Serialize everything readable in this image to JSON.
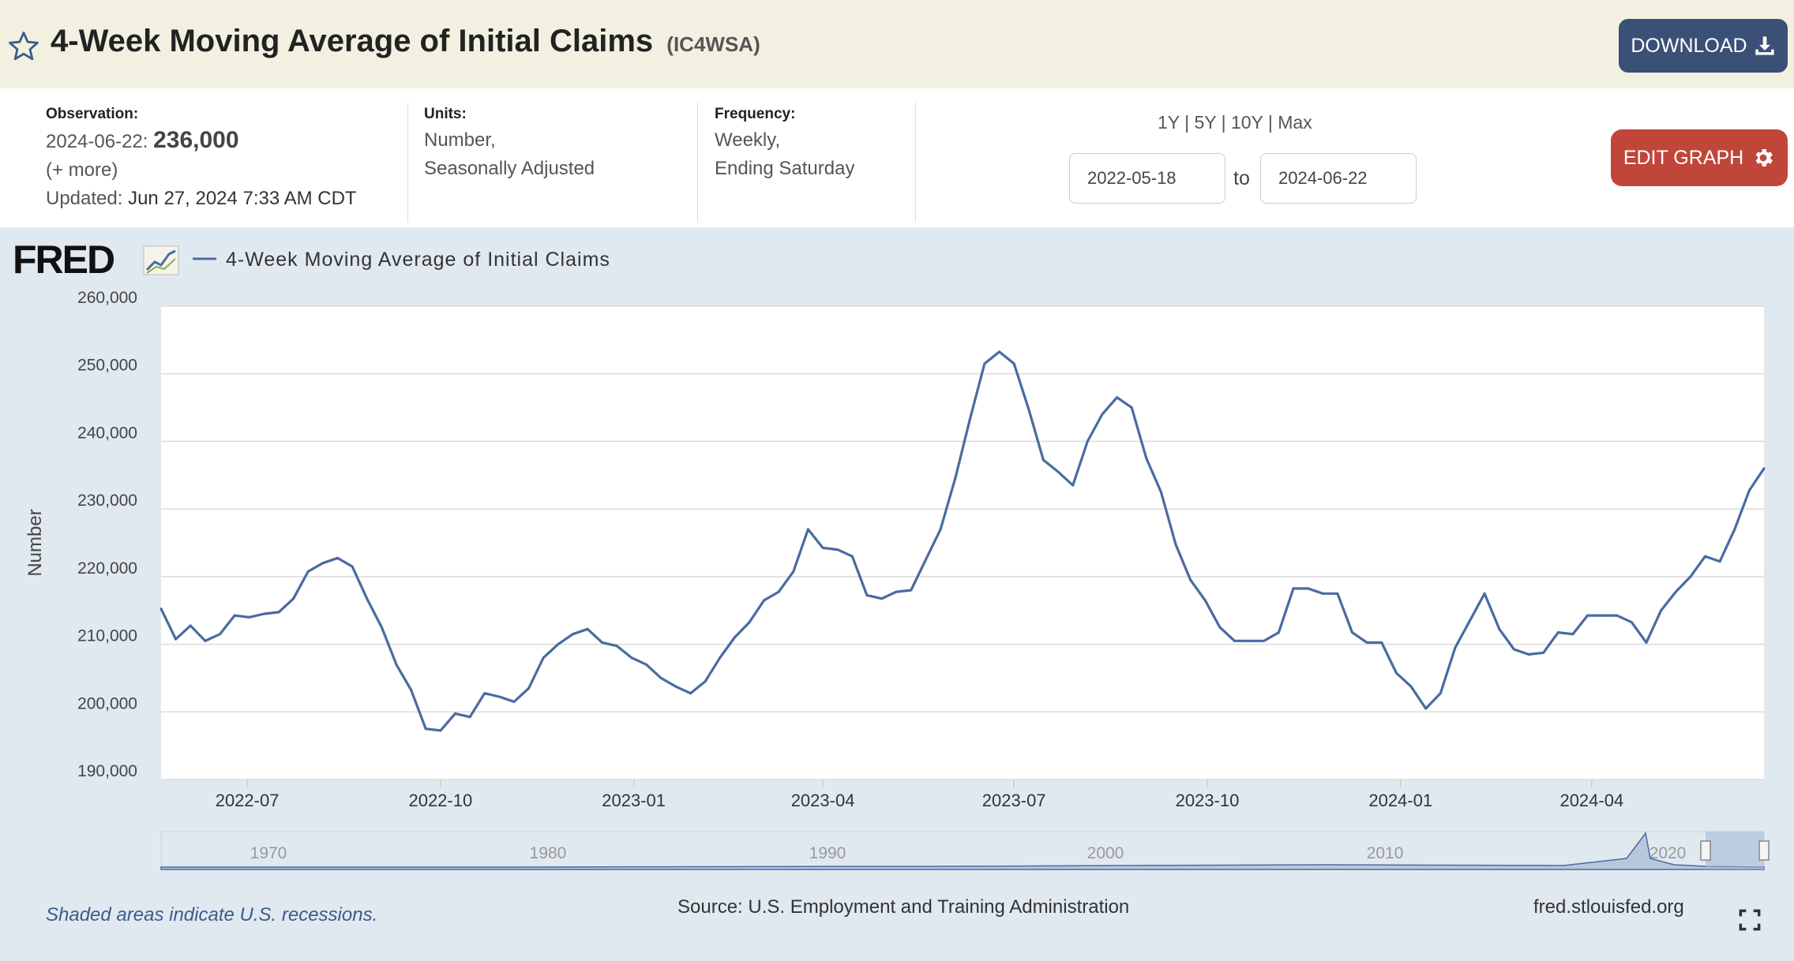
{
  "header": {
    "title": "4-Week Moving Average of Initial Claims",
    "series_id": "(IC4WSA)",
    "download_label": "DOWNLOAD",
    "star_icon": "star-outline-icon",
    "download_icon": "download-icon"
  },
  "meta": {
    "observation_label": "Observation:",
    "observation_date": "2024-06-22:",
    "observation_value": "236,000",
    "more_link": "(+ more)",
    "updated_label": "Updated:",
    "updated_value": "Jun 27, 2024 7:33 AM CDT",
    "units_label": "Units:",
    "units_line1": "Number,",
    "units_line2": "Seasonally Adjusted",
    "frequency_label": "Frequency:",
    "frequency_line1": "Weekly,",
    "frequency_line2": "Ending Saturday",
    "range_links": [
      "1Y",
      "5Y",
      "10Y",
      "Max"
    ],
    "range_sep": "|",
    "start_date": "2022-05-18",
    "to_label": "to",
    "end_date": "2024-06-22",
    "edit_label": "EDIT GRAPH",
    "edit_icon": "gear-icon"
  },
  "colors": {
    "line": "#4a6ba0",
    "header_bg": "#f2f1e1",
    "panel_bg": "#e1e9f0",
    "download_btn": "#3b5077",
    "edit_btn": "#c1463a"
  },
  "chart_data": {
    "type": "line",
    "legend": "4-Week Moving Average of Initial Claims",
    "ylabel": "Number",
    "ylim": [
      190000,
      260000
    ],
    "yticks": [
      190000,
      200000,
      210000,
      220000,
      230000,
      240000,
      250000,
      260000
    ],
    "ytick_labels": [
      "190,000",
      "200,000",
      "210,000",
      "220,000",
      "230,000",
      "240,000",
      "250,000",
      "260,000"
    ],
    "xlim": [
      "2022-05-21",
      "2024-06-22"
    ],
    "xticks": [
      "2022-07-01",
      "2022-10-01",
      "2023-01-01",
      "2023-04-01",
      "2023-07-01",
      "2023-10-01",
      "2024-01-01",
      "2024-04-01"
    ],
    "xtick_labels": [
      "2022-07",
      "2022-10",
      "2023-01",
      "2023-04",
      "2023-07",
      "2023-10",
      "2024-01",
      "2024-04"
    ],
    "grid": true,
    "series": [
      {
        "name": "4-Week Moving Average of Initial Claims",
        "start_date": "2022-05-21",
        "interval_days": 7,
        "values": [
          215250,
          210750,
          212750,
          210500,
          211500,
          214250,
          214000,
          214500,
          214750,
          216750,
          220750,
          222000,
          222750,
          221500,
          216750,
          212500,
          207000,
          203250,
          197500,
          197250,
          199750,
          199250,
          202750,
          202250,
          201500,
          203500,
          208000,
          210000,
          211500,
          212250,
          210250,
          209750,
          208000,
          207000,
          205000,
          203750,
          202750,
          204500,
          208000,
          211000,
          213250,
          216500,
          217750,
          220750,
          227000,
          224250,
          224000,
          223000,
          217250,
          216750,
          217750,
          218000,
          222500,
          227000,
          234500,
          243250,
          251500,
          253250,
          251500,
          244750,
          237250,
          235500,
          233500,
          240000,
          244000,
          246500,
          245000,
          237500,
          232500,
          224750,
          219500,
          216500,
          212500,
          210500,
          210500,
          210500,
          211750,
          218250,
          218250,
          217500,
          217500,
          211750,
          210250,
          210250,
          205750,
          203750,
          200500,
          202750,
          209500,
          213500,
          217500,
          212250,
          209250,
          208500,
          208750,
          211750,
          211500,
          214250,
          214250,
          214250,
          213250,
          210250,
          215000,
          217750,
          220000,
          223000,
          222250,
          227000,
          232750,
          236000
        ]
      }
    ],
    "navigator": {
      "tick_labels": [
        "1970",
        "1980",
        "1990",
        "2000",
        "2010",
        "2020"
      ]
    }
  },
  "footer": {
    "recession_note": "Shaded areas indicate U.S. recessions.",
    "source": "Source: U.S. Employment and Training Administration",
    "site": "fred.stlouisfed.org",
    "fullscreen_icon": "fullscreen-icon"
  },
  "logo": {
    "text": "FRED"
  }
}
